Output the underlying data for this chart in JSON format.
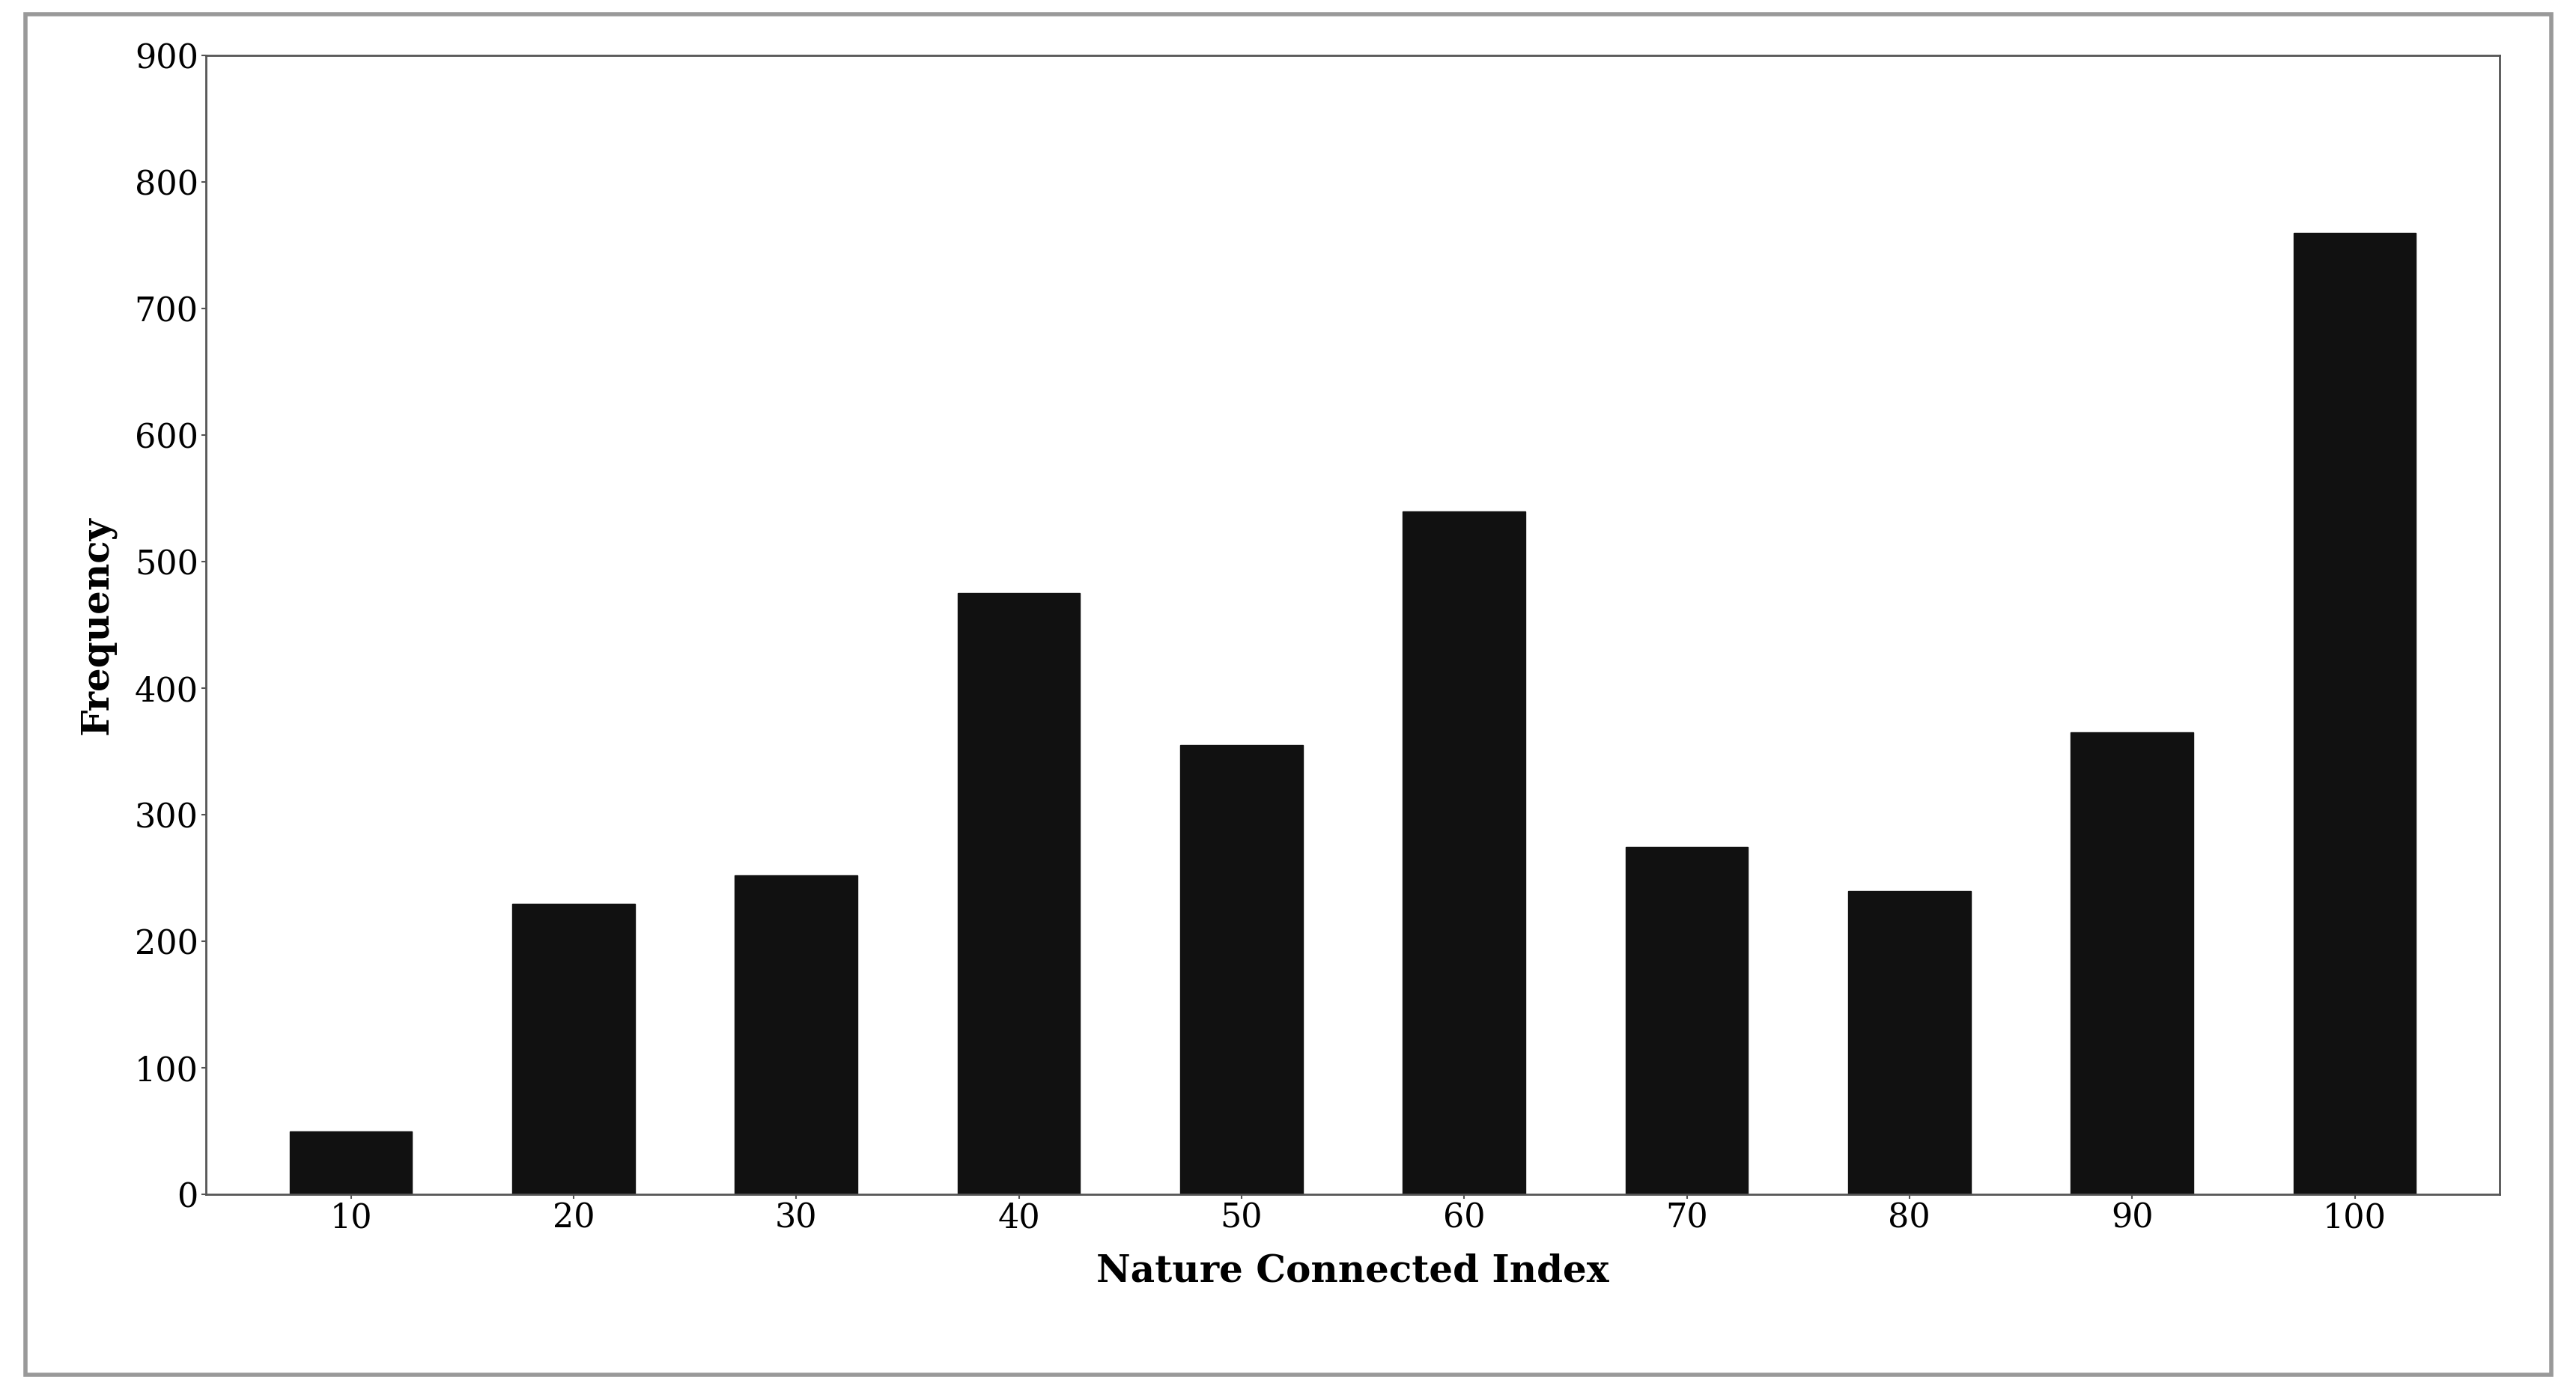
{
  "categories": [
    10,
    20,
    30,
    40,
    50,
    60,
    70,
    80,
    90,
    100
  ],
  "values": [
    50,
    230,
    252,
    475,
    355,
    540,
    275,
    240,
    365,
    760
  ],
  "bar_color": "#111111",
  "xlabel": "Nature Connected Index",
  "ylabel": "Frequency",
  "ylim": [
    0,
    900
  ],
  "yticks": [
    0,
    100,
    200,
    300,
    400,
    500,
    600,
    700,
    800,
    900
  ],
  "background_color": "#ffffff",
  "outer_background": "#ffffff",
  "border_color": "#999999",
  "xlabel_fontsize": 36,
  "ylabel_fontsize": 36,
  "tick_fontsize": 32,
  "bar_width": 0.55,
  "spine_color": "#555555"
}
